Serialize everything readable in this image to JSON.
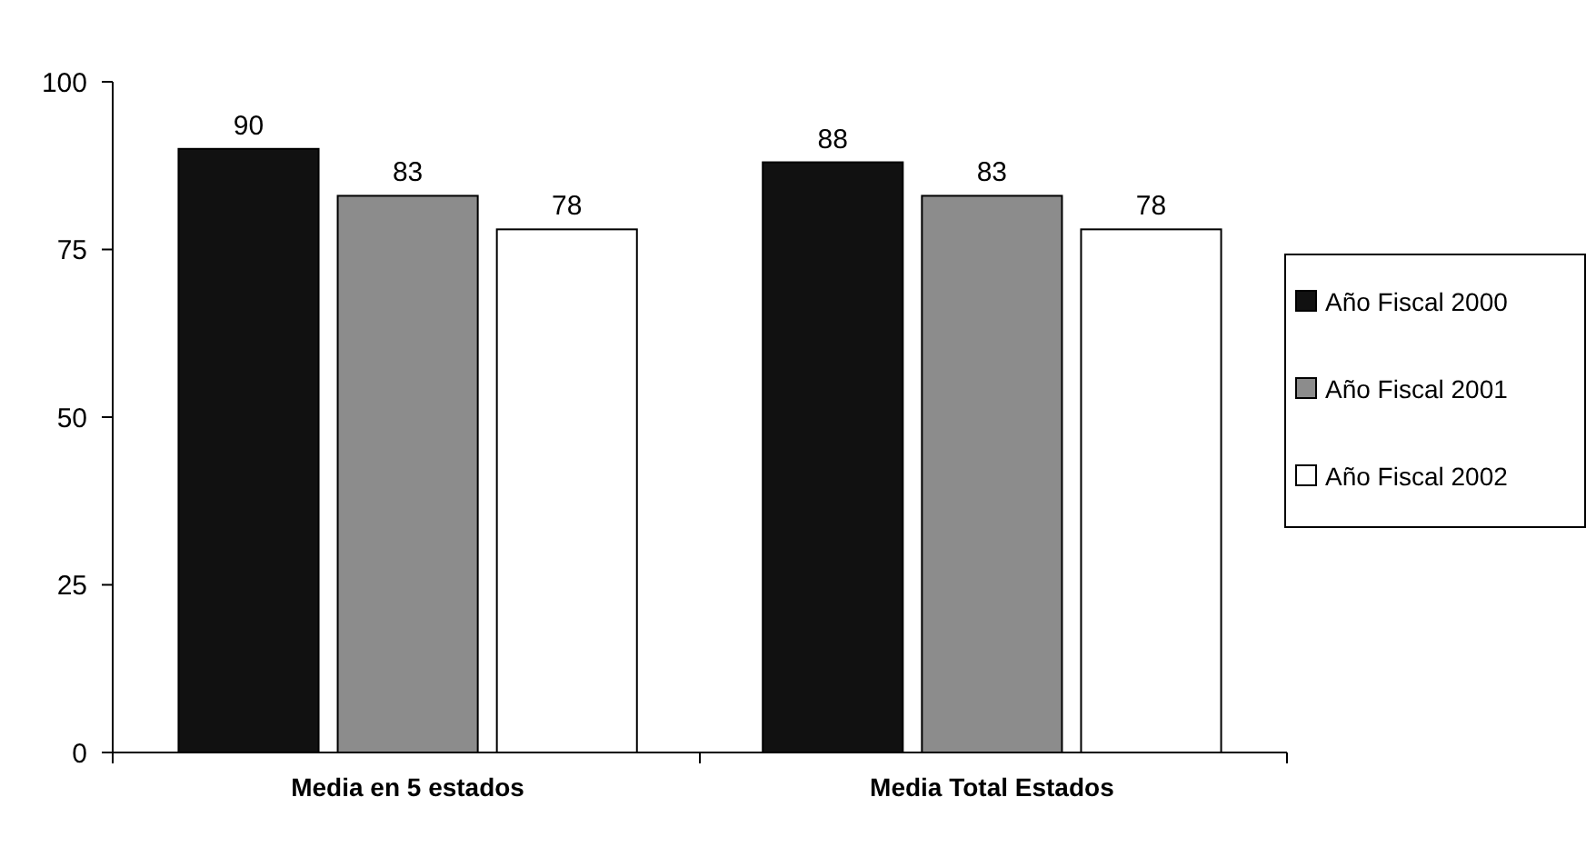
{
  "chart_data": {
    "type": "bar",
    "categories": [
      "Media en 5 estados",
      "Media Total Estados"
    ],
    "series": [
      {
        "name": "Año Fiscal 2000",
        "color": "#111111",
        "values": [
          90,
          88
        ]
      },
      {
        "name": "Año Fiscal 2001",
        "color": "#8c8c8c",
        "values": [
          83,
          83
        ]
      },
      {
        "name": "Año Fiscal 2002",
        "color": "#ffffff",
        "values": [
          78,
          78
        ]
      }
    ],
    "ylim": [
      0,
      100
    ],
    "yticks": [
      0,
      25,
      50,
      75,
      100
    ],
    "data_labels": true,
    "legend": "right"
  }
}
